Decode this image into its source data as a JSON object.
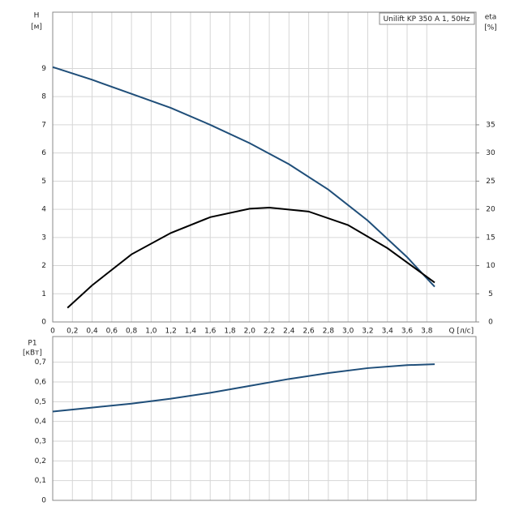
{
  "chart_data": [
    {
      "type": "line",
      "legend_text": "Unilift KP 350 A 1, 50Hz",
      "y_label": "H",
      "y_unit": "[м]",
      "y2_label": "eta",
      "y2_unit": "[%]",
      "x_label": "Q [л/с]",
      "xlim": [
        0,
        4.3
      ],
      "ylim": [
        0,
        11
      ],
      "y2lim": [
        0,
        55
      ],
      "grid": true,
      "xticks": [
        0,
        {
          "value": 0.2,
          "label": "0,2"
        },
        {
          "value": 0.4,
          "label": "0,4"
        },
        {
          "value": 0.6,
          "label": "0,6"
        },
        {
          "value": 0.8,
          "label": "0,8"
        },
        {
          "value": 1.0,
          "label": "1,0"
        },
        {
          "value": 1.2,
          "label": "1,2"
        },
        {
          "value": 1.4,
          "label": "1,4"
        },
        {
          "value": 1.6,
          "label": "1,6"
        },
        {
          "value": 1.8,
          "label": "1,8"
        },
        {
          "value": 2.0,
          "label": "2,0"
        },
        {
          "value": 2.2,
          "label": "2,2"
        },
        {
          "value": 2.4,
          "label": "2,4"
        },
        {
          "value": 2.6,
          "label": "2,6"
        },
        {
          "value": 2.8,
          "label": "2,8"
        },
        {
          "value": 3.0,
          "label": "3,0"
        },
        {
          "value": 3.2,
          "label": "3,2"
        },
        {
          "value": 3.4,
          "label": "3,4"
        },
        {
          "value": 3.6,
          "label": "3,6"
        },
        {
          "value": 3.8,
          "label": "3,8"
        }
      ],
      "yticks": [
        0,
        1,
        2,
        3,
        4,
        5,
        6,
        7,
        8,
        9
      ],
      "y2ticks": [
        0,
        5,
        10,
        15,
        20,
        25,
        30,
        35
      ],
      "series": [
        {
          "name": "H",
          "color": "#1f4e79",
          "x": [
            0,
            0.4,
            0.8,
            1.2,
            1.6,
            2.0,
            2.4,
            2.8,
            3.2,
            3.6,
            3.88
          ],
          "values": [
            9.05,
            8.6,
            8.1,
            7.6,
            7.0,
            6.35,
            5.6,
            4.7,
            3.6,
            2.3,
            1.25
          ]
        },
        {
          "name": "eta",
          "color": "#000000",
          "axis": "y2",
          "x": [
            0.15,
            0.4,
            0.8,
            1.2,
            1.6,
            2.0,
            2.2,
            2.6,
            3.0,
            3.4,
            3.88
          ],
          "values": [
            2.5,
            6.5,
            12.0,
            15.8,
            18.6,
            20.1,
            20.3,
            19.6,
            17.2,
            13.1,
            7.0
          ]
        }
      ]
    },
    {
      "type": "line",
      "y_label": "P1",
      "y_unit": "[кВт]",
      "xlim": [
        0,
        4.3
      ],
      "ylim": [
        0,
        0.83
      ],
      "grid": true,
      "yticks": [
        0,
        {
          "value": 0.1,
          "label": "0,1"
        },
        {
          "value": 0.2,
          "label": "0,2"
        },
        {
          "value": 0.3,
          "label": "0,3"
        },
        {
          "value": 0.4,
          "label": "0,4"
        },
        {
          "value": 0.5,
          "label": "0,5"
        },
        {
          "value": 0.6,
          "label": "0,6"
        },
        {
          "value": 0.7,
          "label": "0,7"
        }
      ],
      "series": [
        {
          "name": "P1",
          "color": "#1f4e79",
          "x": [
            0,
            0.4,
            0.8,
            1.2,
            1.6,
            2.0,
            2.4,
            2.8,
            3.2,
            3.6,
            3.88
          ],
          "values": [
            0.45,
            0.47,
            0.49,
            0.515,
            0.545,
            0.58,
            0.615,
            0.645,
            0.67,
            0.685,
            0.69
          ]
        }
      ]
    }
  ]
}
